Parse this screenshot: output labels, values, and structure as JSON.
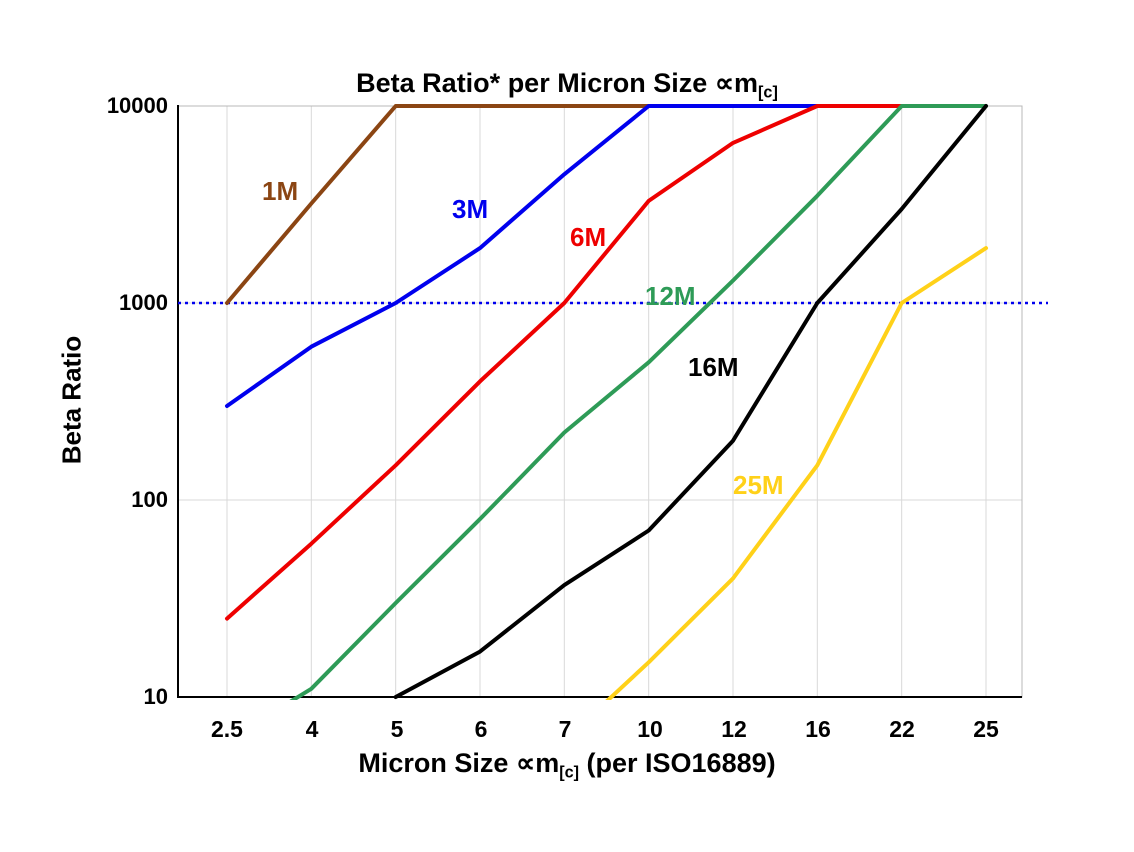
{
  "title": {
    "main": "Beta Ratio* per Micron Size ∝m",
    "sub": "[c]"
  },
  "y_axis": {
    "label": "Beta Ratio",
    "tick_labels": [
      "10000",
      "1000",
      "100",
      "10"
    ]
  },
  "x_axis": {
    "label_main": "Micron Size ∝m",
    "label_sub": "[c]",
    "label_post": " (per ISO16889)"
  },
  "chart_data": {
    "type": "line",
    "x_categories": [
      "2.5",
      "4",
      "5",
      "6",
      "7",
      "10",
      "12",
      "16",
      "22",
      "25"
    ],
    "y_scale": "log",
    "ylim": [
      10,
      10000
    ],
    "y_ticks": [
      10,
      100,
      1000,
      10000
    ],
    "grid": "on",
    "reference_line": {
      "y": 1000,
      "style": "dotted",
      "color": "#0000ee"
    },
    "series": [
      {
        "name": "1M",
        "color": "#8b4513",
        "values": [
          1000,
          3200,
          10000,
          10000,
          10000,
          10000,
          null,
          null,
          null,
          null
        ]
      },
      {
        "name": "3M",
        "color": "#0000ee",
        "values": [
          300,
          600,
          1000,
          1900,
          4500,
          10000,
          10000,
          10000,
          null,
          null
        ]
      },
      {
        "name": "6M",
        "color": "#ee0000",
        "values": [
          25,
          60,
          150,
          400,
          1000,
          3300,
          6500,
          10000,
          10000,
          null
        ]
      },
      {
        "name": "12M",
        "color": "#2e9b57",
        "values": [
          6,
          11,
          30,
          80,
          220,
          500,
          1300,
          3500,
          10000,
          10000
        ]
      },
      {
        "name": "16M",
        "color": "#000000",
        "values": [
          null,
          null,
          10,
          17,
          37,
          70,
          200,
          1000,
          3000,
          10000
        ]
      },
      {
        "name": "25M",
        "color": "#ffd119",
        "values": [
          null,
          null,
          null,
          null,
          6,
          15,
          40,
          150,
          1000,
          1900
        ]
      }
    ]
  }
}
